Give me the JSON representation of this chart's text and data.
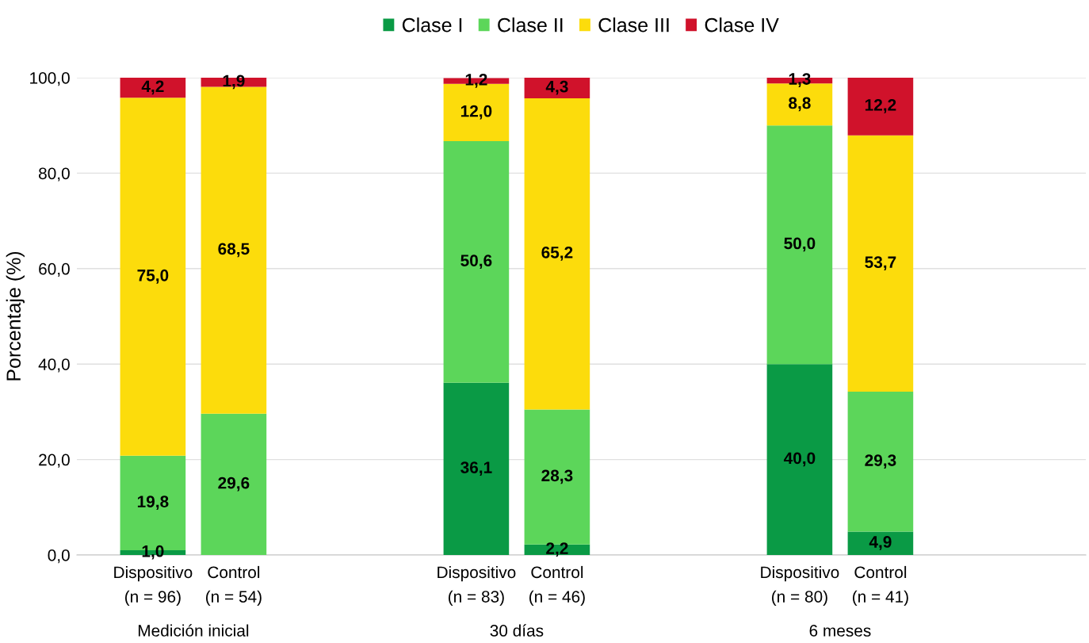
{
  "chart_data": {
    "type": "bar",
    "stacked": true,
    "ylabel": "Porcentaje (%)",
    "categories": [
      "Dispositivo\n(n = 96)",
      "Control\n(n = 54)",
      null,
      null,
      "Dispositivo\n(n = 83)",
      "Control\n(n = 46)",
      null,
      null,
      "Dispositivo\n(n = 80)",
      "Control\n(n = 41)",
      null,
      null
    ],
    "series": [
      {
        "name": "Clase I",
        "color": "#0a9a45",
        "values": [
          1.0,
          null,
          null,
          null,
          36.1,
          2.2,
          null,
          null,
          40.0,
          4.9,
          null,
          null
        ],
        "value_labels": [
          "1,0",
          null,
          null,
          null,
          "36,1",
          "2,2",
          null,
          null,
          "40,0",
          "4,9",
          null,
          null
        ]
      },
      {
        "name": "Clase II",
        "color": "#5cd65a",
        "values": [
          19.8,
          29.6,
          null,
          null,
          50.6,
          28.3,
          null,
          null,
          50.0,
          29.3,
          null,
          null
        ],
        "value_labels": [
          "19,8",
          "29,6",
          null,
          null,
          "50,6",
          "28,3",
          null,
          null,
          "50,0",
          "29,3",
          null,
          null
        ]
      },
      {
        "name": "Clase III",
        "color": "#fcdc0c",
        "values": [
          75.0,
          68.5,
          null,
          null,
          12.0,
          65.2,
          null,
          null,
          8.8,
          53.7,
          null,
          null
        ],
        "value_labels": [
          "75,0",
          "68,5",
          null,
          null,
          "12,0",
          "65,2",
          null,
          null,
          "8,8",
          "53,7",
          null,
          null
        ]
      },
      {
        "name": "Clase IV",
        "color": "#d0122b",
        "values": [
          4.2,
          1.9,
          null,
          null,
          1.2,
          4.3,
          null,
          null,
          1.3,
          12.2,
          null,
          null
        ],
        "value_labels": [
          "4,2",
          "1,9",
          null,
          null,
          "1,2",
          "4,3",
          null,
          null,
          "1,3",
          "12,2",
          null,
          null
        ]
      }
    ],
    "annotations": [
      "Medición inicial",
      "30 días",
      "6 meses"
    ],
    "ylim": [
      0,
      100
    ],
    "yticks": [
      {
        "value": 0,
        "label": "0,0"
      },
      {
        "value": 20,
        "label": "20,0"
      },
      {
        "value": 40,
        "label": "40,0"
      },
      {
        "value": 60,
        "label": "60,0"
      },
      {
        "value": 80,
        "label": "80,0"
      },
      {
        "value": 100,
        "label": "100,0"
      }
    ],
    "grid": "y",
    "legend": "top"
  }
}
